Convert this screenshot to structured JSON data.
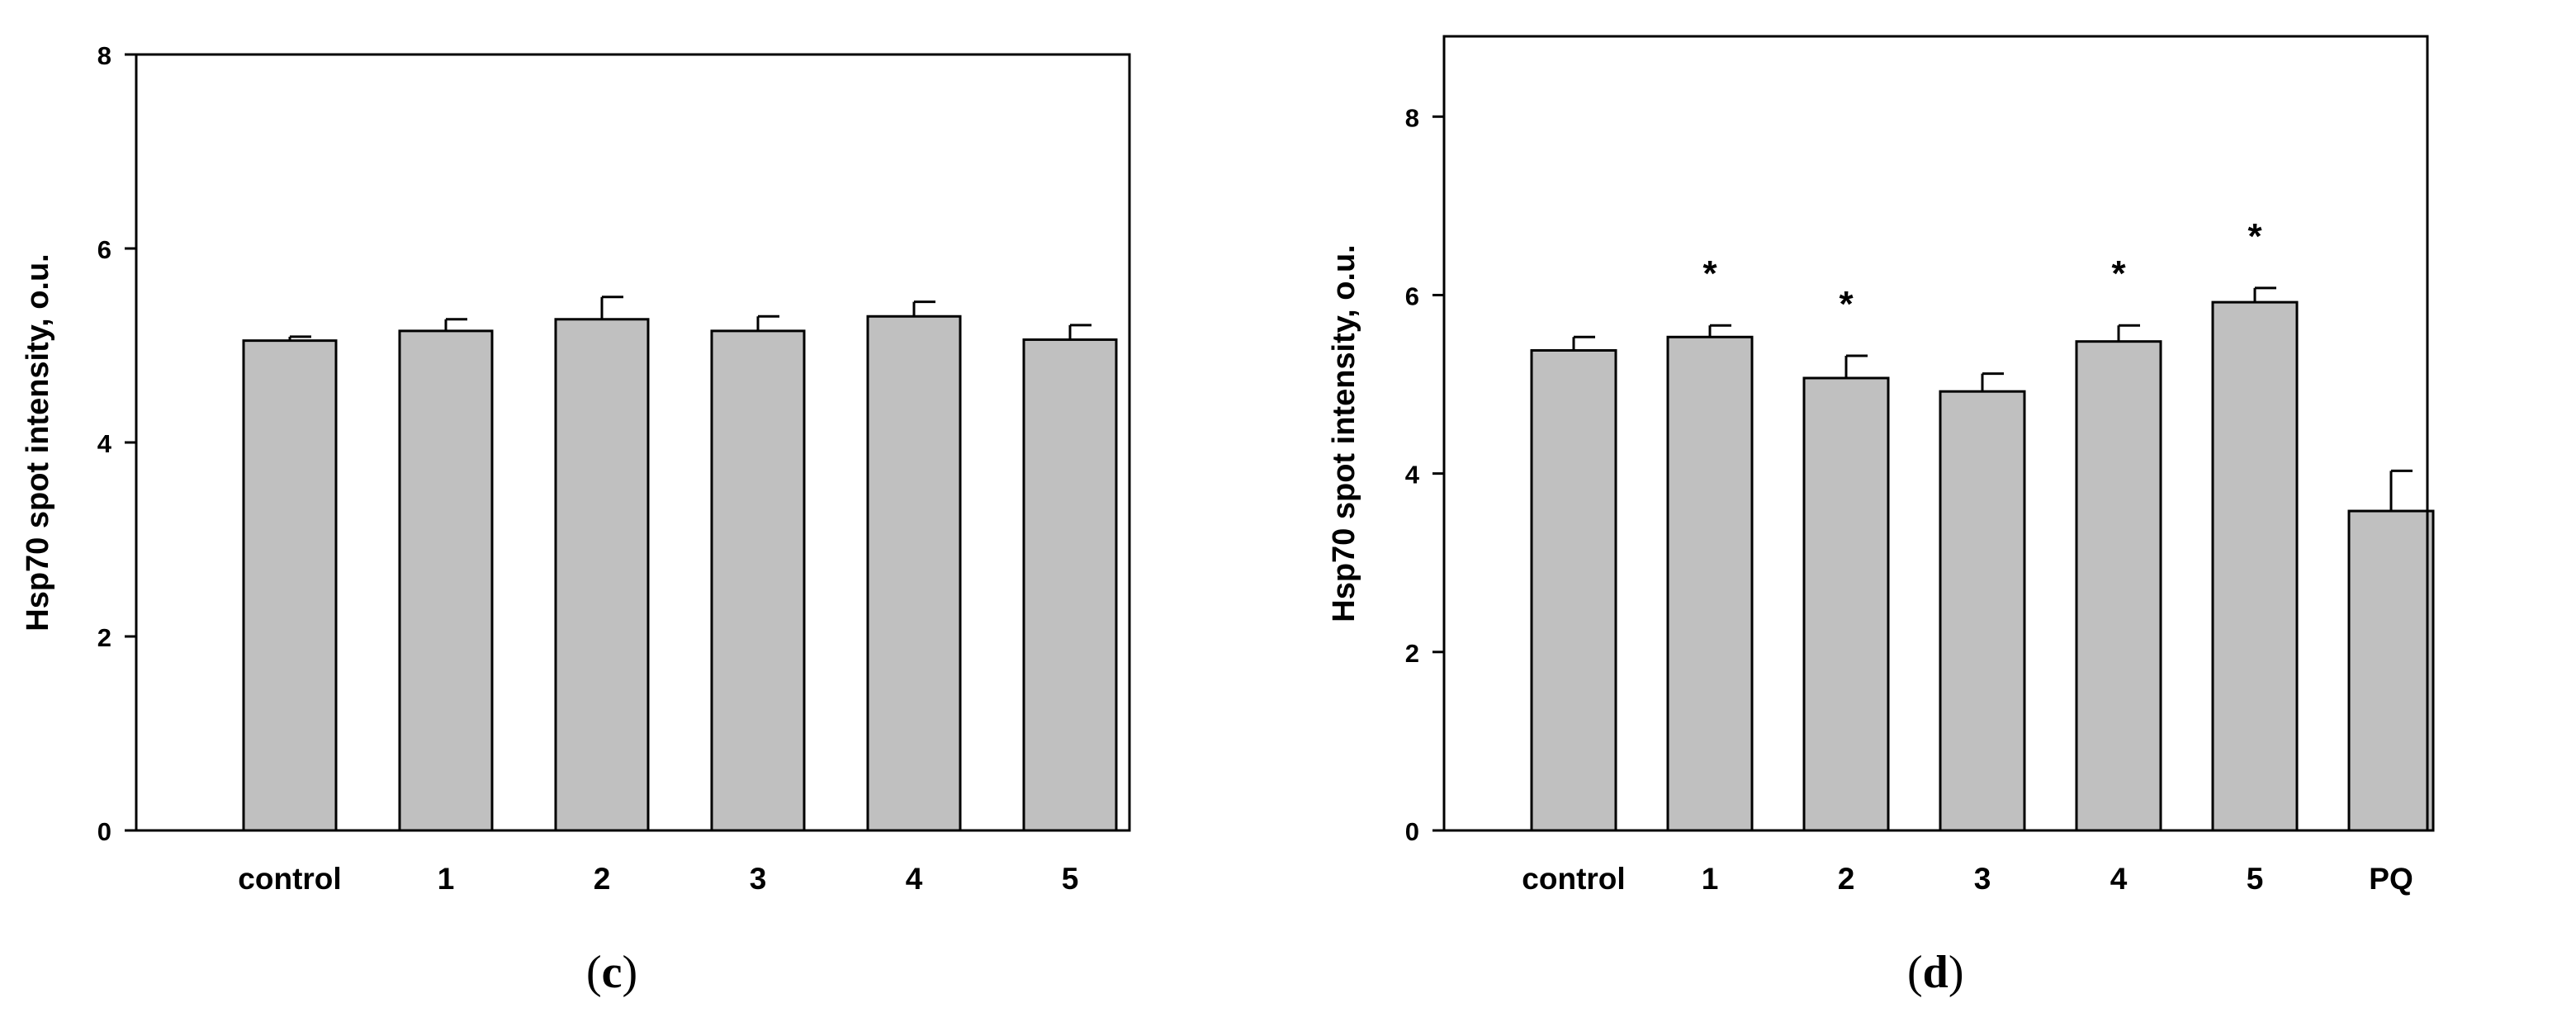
{
  "figure": {
    "panels": [
      {
        "label_open": "(",
        "label_letter": "c",
        "label_close": ")"
      },
      {
        "label_open": "(",
        "label_letter": "d",
        "label_close": ")"
      }
    ]
  },
  "chart_data": [
    {
      "type": "bar",
      "ylabel": "Hsp70 spot intensity, o.u.",
      "xlabel": "",
      "ylim": [
        0,
        8
      ],
      "yticks": [
        0,
        2,
        4,
        6,
        8
      ],
      "categories": [
        "control",
        "1",
        "2",
        "3",
        "4",
        "5"
      ],
      "values": [
        5.05,
        5.15,
        5.27,
        5.15,
        5.3,
        5.06
      ],
      "errors": [
        0.04,
        0.12,
        0.23,
        0.15,
        0.15,
        0.15
      ],
      "significance": [
        "",
        "",
        "",
        "",
        "",
        ""
      ],
      "bar_color": "#c0c0c0",
      "grid": false
    },
    {
      "type": "bar",
      "ylabel": "Hsp70 spot intensity, o.u.",
      "xlabel": "",
      "ylim": [
        0,
        8.9
      ],
      "yticks": [
        0,
        2,
        4,
        6,
        8
      ],
      "categories": [
        "control",
        "1",
        "2",
        "3",
        "4",
        "5",
        "PQ"
      ],
      "values": [
        5.38,
        5.53,
        5.07,
        4.92,
        5.48,
        5.92,
        3.58
      ],
      "errors": [
        0.15,
        0.13,
        0.25,
        0.2,
        0.18,
        0.16,
        0.45
      ],
      "significance": [
        "",
        "*",
        "*",
        "",
        "*",
        "*",
        ""
      ],
      "bar_color": "#c0c0c0",
      "grid": false
    }
  ]
}
